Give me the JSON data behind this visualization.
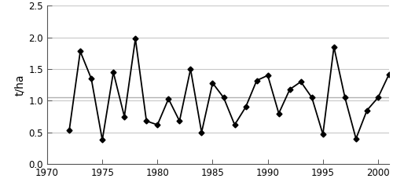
{
  "years": [
    1972,
    1973,
    1974,
    1975,
    1976,
    1977,
    1978,
    1979,
    1980,
    1981,
    1982,
    1983,
    1984,
    1985,
    1986,
    1987,
    1988,
    1989,
    1990,
    1991,
    1992,
    1993,
    1994,
    1995,
    1996,
    1997,
    1998,
    1999,
    2000,
    2001
  ],
  "values": [
    0.53,
    1.78,
    1.35,
    0.38,
    1.45,
    0.75,
    1.98,
    0.68,
    0.62,
    1.03,
    0.68,
    1.5,
    0.5,
    1.28,
    1.05,
    0.62,
    0.9,
    1.32,
    1.4,
    0.8,
    1.18,
    1.3,
    1.05,
    0.47,
    1.85,
    1.05,
    0.4,
    0.85,
    1.05,
    1.42
  ],
  "mean_line": 1.06,
  "ylabel": "t/ha",
  "xlim": [
    1970,
    2001
  ],
  "ylim": [
    0.0,
    2.5
  ],
  "yticks": [
    0.0,
    0.5,
    1.0,
    1.5,
    2.0,
    2.5
  ],
  "xticks": [
    1970,
    1975,
    1980,
    1985,
    1990,
    1995,
    2000
  ],
  "line_color": "#000000",
  "mean_line_color": "#b0b0b0",
  "background_color": "#ffffff",
  "marker": "D",
  "marker_size": 3.5,
  "linewidth": 1.3,
  "tick_fontsize": 8.5,
  "ylabel_fontsize": 10
}
